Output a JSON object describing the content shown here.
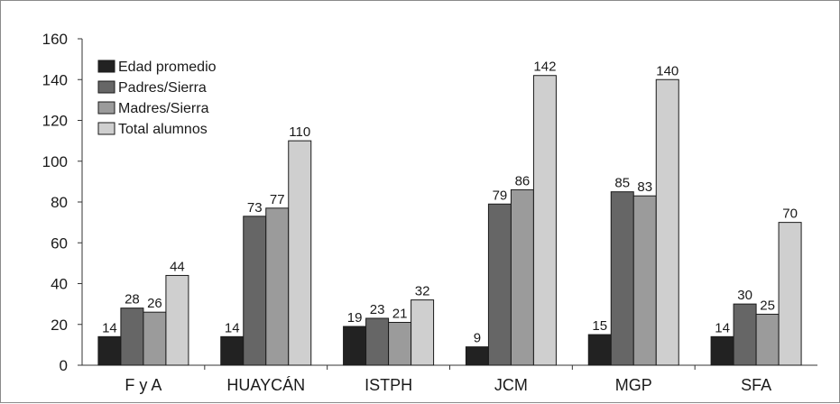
{
  "chart_data": {
    "type": "bar",
    "title": "",
    "xlabel": "",
    "ylabel": "",
    "ylim": [
      0,
      160
    ],
    "yticks": [
      0,
      20,
      40,
      60,
      80,
      100,
      120,
      140,
      160
    ],
    "grid": false,
    "legend_position": "top-left",
    "categories": [
      "F y A",
      "HUAYCÁN",
      "ISTPH",
      "JCM",
      "MGP",
      "SFA"
    ],
    "series": [
      {
        "name": "Edad promedio",
        "color": "#222222",
        "values": [
          14,
          14,
          19,
          9,
          15,
          14
        ]
      },
      {
        "name": "Padres/Sierra",
        "color": "#666666",
        "values": [
          28,
          73,
          23,
          79,
          85,
          30
        ]
      },
      {
        "name": "Madres/Sierra",
        "color": "#9b9b9b",
        "values": [
          26,
          77,
          21,
          86,
          83,
          25
        ]
      },
      {
        "name": "Total alumnos",
        "color": "#cfcfcf",
        "values": [
          44,
          110,
          32,
          142,
          140,
          70
        ]
      }
    ],
    "data_labels": [
      [
        "14",
        "28",
        "26",
        "44"
      ],
      [
        "14",
        "73",
        "77",
        "110"
      ],
      [
        "19",
        "23",
        "21",
        "32"
      ],
      [
        "9",
        "79",
        "86",
        "142"
      ],
      [
        "15",
        "85",
        "83",
        "140"
      ],
      [
        "14",
        "30",
        "25",
        "70"
      ]
    ]
  }
}
